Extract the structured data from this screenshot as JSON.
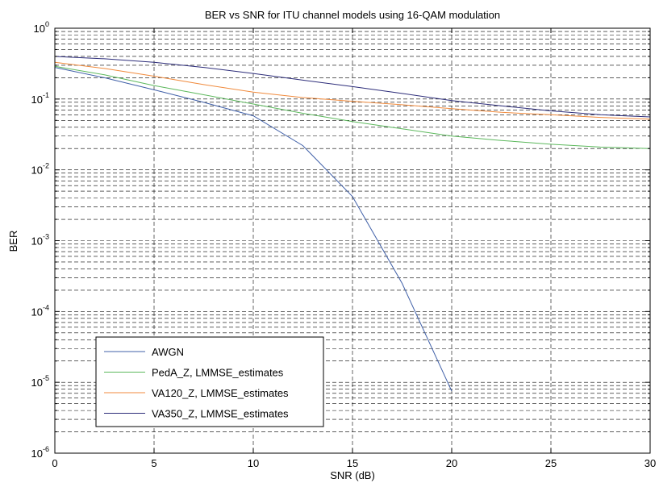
{
  "chart_data": {
    "type": "line",
    "title": "BER vs SNR for ITU channel models using 16-QAM modulation",
    "xlabel": "SNR (dB)",
    "ylabel": "BER",
    "xlim": [
      0,
      30
    ],
    "ylim": [
      1e-06,
      1
    ],
    "yscale": "log",
    "grid": true,
    "legend_position": "bottom-left",
    "x_ticks": [
      {
        "value": 0,
        "label": "0"
      },
      {
        "value": 5,
        "label": "5"
      },
      {
        "value": 10,
        "label": "10"
      },
      {
        "value": 15,
        "label": "15"
      },
      {
        "value": 20,
        "label": "20"
      },
      {
        "value": 25,
        "label": "25"
      },
      {
        "value": 30,
        "label": "30"
      }
    ],
    "y_ticks": [
      {
        "value": 1e-06,
        "base": "10",
        "exp": "-6"
      },
      {
        "value": 1e-05,
        "base": "10",
        "exp": "-5"
      },
      {
        "value": 0.0001,
        "base": "10",
        "exp": "-4"
      },
      {
        "value": 0.001,
        "base": "10",
        "exp": "-3"
      },
      {
        "value": 0.01,
        "base": "10",
        "exp": "-2"
      },
      {
        "value": 0.1,
        "base": "10",
        "exp": "-1"
      },
      {
        "value": 1,
        "base": "10",
        "exp": "0"
      }
    ],
    "series": [
      {
        "name": "AWGN",
        "color": "#4060a8",
        "x": [
          0,
          2.5,
          5,
          7.5,
          10,
          12.5,
          15,
          17.5,
          20
        ],
        "y": [
          0.28,
          0.2,
          0.135,
          0.09,
          0.058,
          0.022,
          0.0042,
          0.00025,
          7.5e-06
        ]
      },
      {
        "name": "PedA_Z, LMMSE_estimates",
        "color": "#5cb85c",
        "x": [
          0,
          2.5,
          5,
          7.5,
          10,
          12.5,
          15,
          17.5,
          20,
          22.5,
          25,
          27.5,
          30
        ],
        "y": [
          0.29,
          0.22,
          0.155,
          0.115,
          0.085,
          0.063,
          0.048,
          0.038,
          0.03,
          0.026,
          0.023,
          0.021,
          0.02
        ]
      },
      {
        "name": "VA120_Z, LMMSE_estimates",
        "color": "#f08a3c",
        "x": [
          0,
          2.5,
          5,
          7.5,
          10,
          12.5,
          15,
          17.5,
          20,
          22.5,
          25,
          27.5,
          30
        ],
        "y": [
          0.33,
          0.27,
          0.21,
          0.16,
          0.125,
          0.105,
          0.093,
          0.083,
          0.073,
          0.065,
          0.06,
          0.055,
          0.052
        ]
      },
      {
        "name": "VA350_Z, LMMSE_estimates",
        "color": "#2d2d7a",
        "x": [
          0,
          2.5,
          5,
          7.5,
          10,
          12.5,
          15,
          17.5,
          20,
          22.5,
          25,
          27.5,
          30
        ],
        "y": [
          0.4,
          0.37,
          0.33,
          0.28,
          0.23,
          0.185,
          0.15,
          0.12,
          0.095,
          0.08,
          0.068,
          0.06,
          0.056
        ]
      }
    ]
  }
}
